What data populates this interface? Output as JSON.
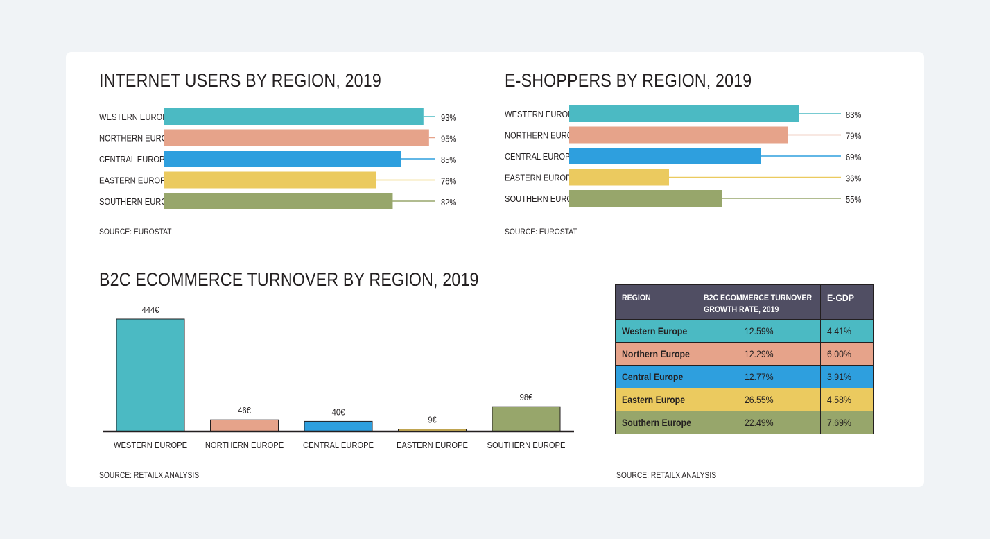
{
  "colors": {
    "western": "#4bbac3",
    "northern": "#e6a38a",
    "central": "#2e9fde",
    "eastern": "#ebca5f",
    "southern": "#97a66b",
    "table_header": "#504e63"
  },
  "chart_data": [
    {
      "type": "bar",
      "orientation": "horizontal",
      "title": "INTERNET USERS BY REGION, 2019",
      "categories": [
        "WESTERN EUROPE",
        "NORTHERN EUROPE",
        "CENTRAL EUROPE",
        "EASTERN EUROPE",
        "SOUTHERN EUROPE"
      ],
      "values": [
        93,
        95,
        85,
        76,
        82
      ],
      "value_labels": [
        "93%",
        "95%",
        "85%",
        "76%",
        "82%"
      ],
      "xlim": [
        0,
        100
      ],
      "source": "SOURCE: EUROSTAT"
    },
    {
      "type": "bar",
      "orientation": "horizontal",
      "title": "E-SHOPPERS BY REGION, 2019",
      "categories": [
        "WESTERN EUROPE",
        "NORTHERN EUROPE",
        "CENTRAL EUROPE",
        "EASTERN EUROPE",
        "SOUTHERN EUROPE"
      ],
      "values": [
        83,
        79,
        69,
        36,
        55
      ],
      "value_labels": [
        "83%",
        "79%",
        "69%",
        "36%",
        "55%"
      ],
      "xlim": [
        0,
        100
      ],
      "source": "SOURCE: EUROSTAT"
    },
    {
      "type": "bar",
      "orientation": "vertical",
      "title": "B2C ECOMMERCE TURNOVER BY REGION, 2019",
      "categories": [
        "WESTERN EUROPE",
        "NORTHERN EUROPE",
        "CENTRAL EUROPE",
        "EASTERN EUROPE",
        "SOUTHERN EUROPE"
      ],
      "values": [
        444,
        46,
        40,
        9,
        98
      ],
      "value_labels": [
        "444€",
        "46€",
        "40€",
        "9€",
        "98€"
      ],
      "ylim": [
        0,
        444
      ],
      "source": "SOURCE: RETAILX ANALYSIS"
    },
    {
      "type": "table",
      "columns": [
        "REGION",
        "B2C ECOMMERCE TURNOVER GROWTH RATE, 2019",
        "E-GDP"
      ],
      "rows": [
        [
          "Western Europe",
          "12.59%",
          "4.41%"
        ],
        [
          "Northern Europe",
          "12.29%",
          "6.00%"
        ],
        [
          "Central Europe",
          "12.77%",
          "3.91%"
        ],
        [
          "Eastern Europe",
          "26.55%",
          "4.58%"
        ],
        [
          "Southern Europe",
          "22.49%",
          "7.69%"
        ]
      ],
      "source": "SOURCE: RETAILX ANALYSIS"
    }
  ]
}
